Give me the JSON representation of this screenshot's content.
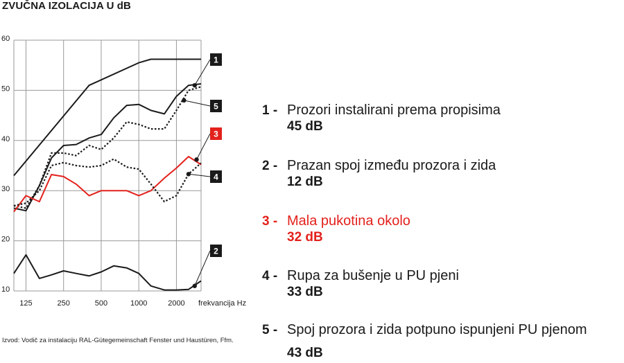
{
  "title": "ZVUČNA IZOLACIJA U dB",
  "source_note": "Izvod: Vodič za instalaciju RAL-Gütegemeinschaft Fenster und Haustüren, Ffm.",
  "colors": {
    "red": "#e3211c",
    "dark": "#1a1a1a",
    "grid": "#999999"
  },
  "chart_data": {
    "type": "line",
    "xlabel": "frekvancija Hz",
    "x_ticks": [
      "125",
      "250",
      "500",
      "1000",
      "2000"
    ],
    "x_tick_values": [
      125,
      250,
      500,
      1000,
      2000
    ],
    "xlim": [
      100,
      3150
    ],
    "x_scale": "log",
    "ylim": [
      10,
      60
    ],
    "y_ticks": [
      "10",
      "20",
      "30",
      "40",
      "50",
      "60"
    ],
    "y_tick_values": [
      10,
      20,
      30,
      40,
      50,
      60
    ],
    "grid": true,
    "series": [
      {
        "id": "1",
        "color": "#1a1a1a",
        "dash": "solid",
        "points": [
          [
            100,
            33
          ],
          [
            400,
            51
          ],
          [
            1000,
            55.5
          ],
          [
            1250,
            56.2
          ],
          [
            3150,
            56.2
          ]
        ]
      },
      {
        "id": "5",
        "color": "#1a1a1a",
        "dash": "dotted",
        "points": [
          [
            100,
            27
          ],
          [
            125,
            26.5
          ],
          [
            160,
            31
          ],
          [
            200,
            37.5
          ],
          [
            250,
            37.5
          ],
          [
            315,
            37
          ],
          [
            400,
            39
          ],
          [
            500,
            38.2
          ],
          [
            630,
            40.5
          ],
          [
            800,
            43.7
          ],
          [
            1000,
            43.2
          ],
          [
            1250,
            42.3
          ],
          [
            1600,
            42.3
          ],
          [
            2000,
            46
          ],
          [
            2500,
            50
          ],
          [
            3150,
            50.7
          ]
        ]
      },
      {
        "id": "5-solid",
        "color": "#1a1a1a",
        "dash": "solid",
        "points": [
          [
            100,
            26.5
          ],
          [
            125,
            26
          ],
          [
            160,
            31
          ],
          [
            200,
            36.5
          ],
          [
            250,
            39
          ],
          [
            315,
            39.2
          ],
          [
            400,
            40.5
          ],
          [
            500,
            41.2
          ],
          [
            630,
            44.5
          ],
          [
            800,
            47
          ],
          [
            1000,
            47.2
          ],
          [
            1250,
            46
          ],
          [
            1600,
            45.3
          ],
          [
            2000,
            48.8
          ],
          [
            2500,
            51
          ],
          [
            3150,
            51.3
          ]
        ]
      },
      {
        "id": "3",
        "color": "#e3211c",
        "dash": "solid",
        "points": [
          [
            100,
            25.8
          ],
          [
            125,
            29
          ],
          [
            160,
            27.8
          ],
          [
            200,
            33.2
          ],
          [
            250,
            32.8
          ],
          [
            315,
            31.3
          ],
          [
            400,
            29
          ],
          [
            500,
            30
          ],
          [
            630,
            30
          ],
          [
            800,
            30
          ],
          [
            1000,
            29
          ],
          [
            1250,
            30
          ],
          [
            1600,
            32.5
          ],
          [
            2000,
            34.5
          ],
          [
            2500,
            36.8
          ],
          [
            3150,
            35.2
          ]
        ]
      },
      {
        "id": "4",
        "color": "#1a1a1a",
        "dash": "dotted",
        "points": [
          [
            100,
            27
          ],
          [
            125,
            27.5
          ],
          [
            160,
            30
          ],
          [
            200,
            35
          ],
          [
            250,
            35.6
          ],
          [
            315,
            35
          ],
          [
            400,
            34.7
          ],
          [
            500,
            35
          ],
          [
            630,
            36.3
          ],
          [
            800,
            34.7
          ],
          [
            1000,
            34.3
          ],
          [
            1250,
            31.3
          ],
          [
            1600,
            27.8
          ],
          [
            2000,
            29
          ],
          [
            2500,
            33.3
          ],
          [
            3150,
            35.5
          ]
        ]
      },
      {
        "id": "2",
        "color": "#1a1a1a",
        "dash": "solid",
        "points": [
          [
            100,
            13.5
          ],
          [
            125,
            17.2
          ],
          [
            160,
            12.5
          ],
          [
            200,
            13.2
          ],
          [
            250,
            14
          ],
          [
            315,
            13.5
          ],
          [
            400,
            13
          ],
          [
            500,
            13.8
          ],
          [
            630,
            15
          ],
          [
            800,
            14.6
          ],
          [
            1000,
            13.5
          ],
          [
            1250,
            11
          ],
          [
            1600,
            10.2
          ],
          [
            2000,
            10.2
          ],
          [
            2500,
            10.3
          ],
          [
            3150,
            12
          ]
        ]
      }
    ],
    "callouts": [
      {
        "label": "1",
        "box_color": "#1a1a1a",
        "x": 2800,
        "y": 51
      },
      {
        "label": "5",
        "box_color": "#1a1a1a",
        "x": 2300,
        "y": 48
      },
      {
        "label": "3",
        "box_color": "#e3211c",
        "x": 2900,
        "y": 36.2
      },
      {
        "label": "4",
        "box_color": "#1a1a1a",
        "x": 2500,
        "y": 33.3
      },
      {
        "label": "2",
        "box_color": "#1a1a1a",
        "x": 2800,
        "y": 11
      }
    ]
  },
  "legend": [
    {
      "num": "1 -",
      "label": "Prozori instalirani prema propisima",
      "value": "45 dB",
      "color": "#1a1a1a"
    },
    {
      "num": "2 -",
      "label": "Prazan spoj između prozora i zida",
      "value": "12 dB",
      "color": "#1a1a1a"
    },
    {
      "num": "3 -",
      "label": "Mala pukotina okolo",
      "value": "32 dB",
      "color": "#e3211c"
    },
    {
      "num": "4 -",
      "label": "Rupa za bušenje u PU pjeni",
      "value": "33 dB",
      "color": "#1a1a1a"
    },
    {
      "num": "5 -",
      "label": "Spoj prozora i zida potpuno ispunjeni PU pjenom",
      "value": "43 dB",
      "color": "#1a1a1a"
    }
  ]
}
